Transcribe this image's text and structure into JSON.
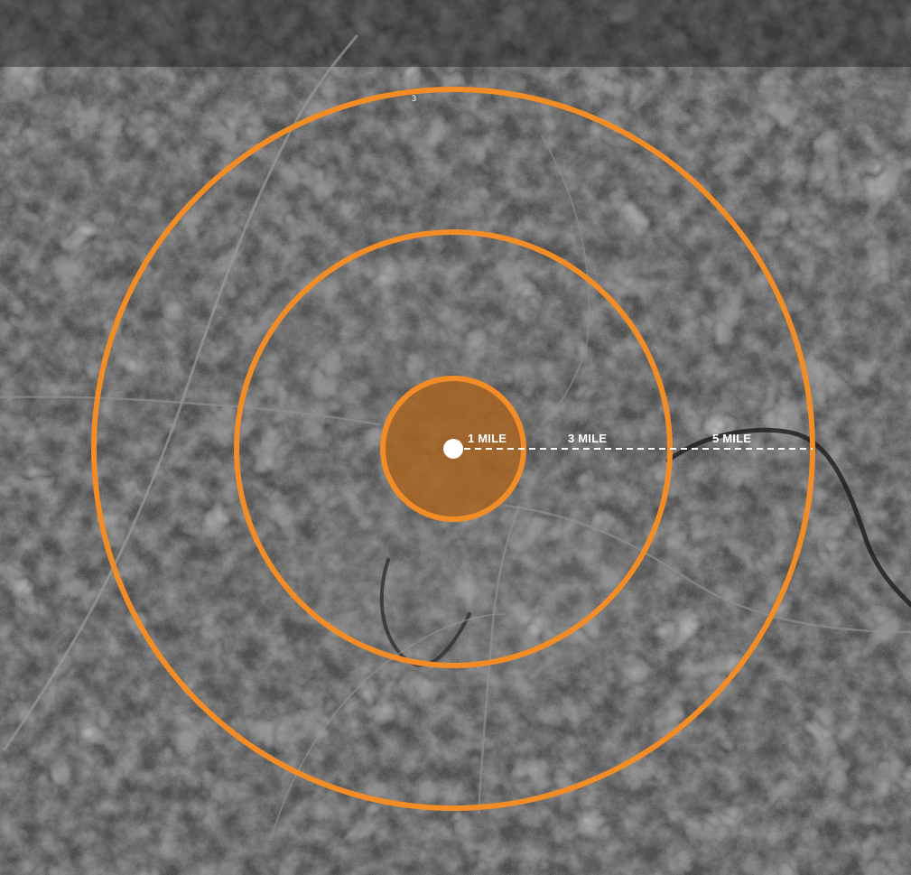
{
  "map": {
    "rings": [
      {
        "label": "1 MILE",
        "fill": "#c87416"
      },
      {
        "label": "3 MILE"
      },
      {
        "label": "5 MILE"
      }
    ],
    "road_label": "3",
    "colors": {
      "ring_stroke": "#f28c26",
      "inner_fill": "#a5590f",
      "center_marker": "#ffffff",
      "radius_line": "#ffffff",
      "terrain_dark": "#2c2c2c",
      "terrain_light": "#7a7a7a"
    },
    "icons": {
      "center": "location-dot-icon"
    }
  }
}
